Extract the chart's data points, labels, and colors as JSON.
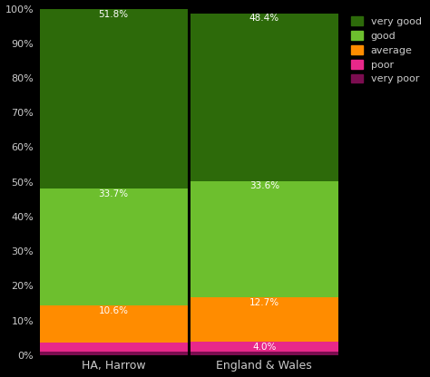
{
  "categories": [
    "HA, Harrow",
    "England & Wales"
  ],
  "series": [
    {
      "label": "very poor",
      "color": "#7b0d50",
      "values": [
        0.9,
        0.9
      ]
    },
    {
      "label": "poor",
      "color": "#e8288a",
      "values": [
        2.8,
        3.1
      ]
    },
    {
      "label": "average",
      "color": "#ff8c00",
      "values": [
        10.6,
        12.7
      ]
    },
    {
      "label": "good",
      "color": "#6dbf2e",
      "values": [
        33.7,
        33.6
      ]
    },
    {
      "label": "very good",
      "color": "#2d6a0a",
      "values": [
        51.8,
        48.4
      ]
    }
  ],
  "label_text": {
    "HA, Harrow": {
      "very good": "51.8%",
      "good": "33.7%",
      "average": "10.6%"
    },
    "England & Wales": {
      "very good": "48.4%",
      "good": "33.6%",
      "average": "12.7%",
      "poor": "4.0%"
    }
  },
  "label_near_top": true,
  "ytick_labels": [
    "0%",
    "10%",
    "20%",
    "30%",
    "40%",
    "50%",
    "60%",
    "70%",
    "80%",
    "90%",
    "100%"
  ],
  "ytick_values": [
    0,
    10,
    20,
    30,
    40,
    50,
    60,
    70,
    80,
    90,
    100
  ],
  "background_color": "#000000",
  "text_color": "#cccccc",
  "bar_width": 0.98,
  "figsize": [
    4.74,
    4.16
  ],
  "dpi": 100,
  "label_fontsize": 7.5,
  "divider_color": "#000000",
  "divider_linewidth": 1.5
}
